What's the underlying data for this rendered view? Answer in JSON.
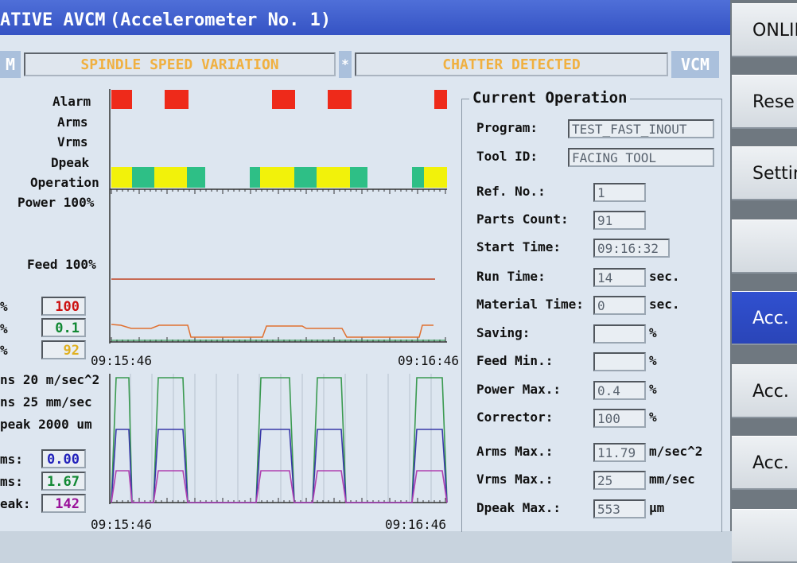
{
  "title": {
    "part1": "ATIVE AVCM",
    "part2": "(Accelerometer No. 1)"
  },
  "status_bar": {
    "left_tag": "M",
    "message1": "SPINDLE SPEED VARIATION",
    "separator": "*",
    "message2": "CHATTER DETECTED",
    "right_tag": "VCM"
  },
  "sidebar": {
    "buttons": [
      {
        "label": "ONLIN"
      },
      {
        "label": "Rese"
      },
      {
        "label": "Settin"
      },
      {
        "label": ""
      },
      {
        "label": "Acc.",
        "active": true
      },
      {
        "label": "Acc."
      },
      {
        "label": "Acc."
      },
      {
        "label": ""
      }
    ]
  },
  "upper_chart": {
    "row_labels": [
      "Alarm",
      "Arms",
      "Vrms",
      "Dpeak",
      "Operation"
    ],
    "power_label": "Power 100%",
    "feed_label": "Feed 100%",
    "time_start": "09:15:46",
    "time_end": "09:16:46",
    "alarm_blocks": [
      [
        140,
        166
      ],
      [
        207,
        237
      ],
      [
        342,
        371
      ],
      [
        412,
        442
      ],
      [
        546,
        562
      ]
    ],
    "operation_blocks": [
      {
        "x": [
          140,
          166
        ],
        "c": "yellow"
      },
      {
        "x": [
          166,
          194
        ],
        "c": "green"
      },
      {
        "x": [
          194,
          235
        ],
        "c": "yellow"
      },
      {
        "x": [
          235,
          258
        ],
        "c": "green"
      },
      {
        "x": [
          314,
          327
        ],
        "c": "green"
      },
      {
        "x": [
          327,
          370
        ],
        "c": "yellow"
      },
      {
        "x": [
          370,
          398
        ],
        "c": "green"
      },
      {
        "x": [
          398,
          440
        ],
        "c": "yellow"
      },
      {
        "x": [
          440,
          462
        ],
        "c": "green"
      },
      {
        "x": [
          518,
          533
        ],
        "c": "green"
      },
      {
        "x": [
          533,
          562
        ],
        "c": "yellow"
      }
    ],
    "left_values": [
      {
        "prefix": "%",
        "value": "100",
        "color": "#cc1111"
      },
      {
        "prefix": "%",
        "value": "0.1",
        "color": "#118833"
      },
      {
        "prefix": "%",
        "value": "92",
        "color": "#e0b020"
      }
    ]
  },
  "lower_chart": {
    "scale_labels": [
      "ns 20 m/sec^2",
      "ns 25 mm/sec",
      "peak 2000 um"
    ],
    "time_start": "09:15:46",
    "time_end": "09:16:46",
    "left_values": [
      {
        "prefix": "ms:",
        "value": "0.00",
        "color": "#2222bb"
      },
      {
        "prefix": "ms:",
        "value": "1.67",
        "color": "#118833"
      },
      {
        "prefix": "eak:",
        "value": "142",
        "color": "#991199"
      }
    ]
  },
  "current_operation": {
    "title": "Current Operation",
    "fields": [
      {
        "label": "Program:",
        "value": "TEST_FAST_INOUT",
        "unit": ""
      },
      {
        "label": "Tool ID:",
        "value": "FACING TOOL",
        "unit": ""
      },
      {
        "label": "Ref. No.:",
        "value": "1",
        "unit": ""
      },
      {
        "label": "Parts Count:",
        "value": "91",
        "unit": ""
      },
      {
        "label": "Start Time:",
        "value": "09:16:32",
        "unit": ""
      },
      {
        "label": "Run Time:",
        "value": "14",
        "unit": "sec."
      },
      {
        "label": "Material Time:",
        "value": "0",
        "unit": "sec."
      },
      {
        "label": "Saving:",
        "value": "",
        "unit": "%"
      },
      {
        "label": "Feed Min.:",
        "value": "",
        "unit": "%"
      },
      {
        "label": "Power Max.:",
        "value": "0.4",
        "unit": "%"
      },
      {
        "label": "Corrector:",
        "value": "100",
        "unit": "%"
      },
      {
        "label": "Arms Max.:",
        "value": "11.79",
        "unit": "m/sec^2"
      },
      {
        "label": "Vrms Max.:",
        "value": "25",
        "unit": "mm/sec"
      },
      {
        "label": "Dpeak Max.:",
        "value": "553",
        "unit": "µm"
      }
    ]
  },
  "colors": {
    "alarm": "#ee2a1a",
    "op_yellow": "#f2f20a",
    "op_green": "#2ebf86",
    "accent": "#3050d0",
    "status_text": "#f0b040"
  }
}
